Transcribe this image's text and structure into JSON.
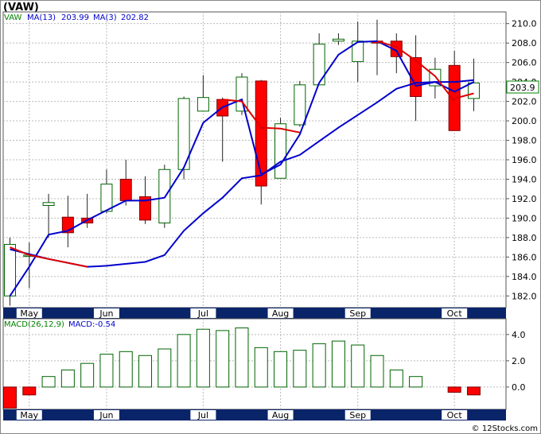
{
  "title": "(VAW)",
  "legend": {
    "symbol": "VAW",
    "ma13_label": "MA(13)",
    "ma13_value": "203.99",
    "ma3_label": "MA(3)",
    "ma3_value": "202.82"
  },
  "price_tag": "203.9",
  "macd_legend": {
    "label": "MACD(26,12,9)",
    "value_label": "MACD:-0.54"
  },
  "watermark": "© 12Stocks.com",
  "colors": {
    "up": "#ffffff",
    "up_border": "#006400",
    "down": "#ff0000",
    "down_border": "#800000",
    "ma13": "#0000cc",
    "ma3": "#dd0000",
    "grid": "#bbbbbb",
    "axis_band": "#0a246a",
    "tag_border": "#008000"
  },
  "chart_data": [
    {
      "type": "candlestick",
      "title": "(VAW)",
      "y_ticks": [
        182,
        184,
        186,
        188,
        190,
        192,
        194,
        196,
        198,
        200,
        202,
        204,
        206,
        208,
        210
      ],
      "ylim": [
        180.8,
        211.2
      ],
      "x_tick_labels": [
        {
          "index": 1,
          "label": "May"
        },
        {
          "index": 5,
          "label": "Jun"
        },
        {
          "index": 10,
          "label": "Jul"
        },
        {
          "index": 14,
          "label": "Aug"
        },
        {
          "index": 18,
          "label": "Sep"
        },
        {
          "index": 23,
          "label": "Oct"
        }
      ],
      "grid": true,
      "candles": [
        {
          "o": 182.0,
          "h": 188.0,
          "l": 181.0,
          "c": 187.3
        },
        {
          "o": 186.2,
          "h": 187.5,
          "l": 182.8,
          "c": 186.2
        },
        {
          "o": 191.3,
          "h": 192.5,
          "l": 188.0,
          "c": 191.6
        },
        {
          "o": 190.1,
          "h": 192.3,
          "l": 187.0,
          "c": 188.5
        },
        {
          "o": 190.0,
          "h": 192.5,
          "l": 189.0,
          "c": 189.5
        },
        {
          "o": 190.7,
          "h": 195.0,
          "l": 190.5,
          "c": 193.5
        },
        {
          "o": 194.0,
          "h": 196.0,
          "l": 191.3,
          "c": 191.8
        },
        {
          "o": 192.2,
          "h": 194.3,
          "l": 189.4,
          "c": 189.8
        },
        {
          "o": 189.5,
          "h": 195.5,
          "l": 189.0,
          "c": 195.0
        },
        {
          "o": 195.0,
          "h": 202.5,
          "l": 194.0,
          "c": 202.3
        },
        {
          "o": 201.0,
          "h": 204.7,
          "l": 201.0,
          "c": 202.4
        },
        {
          "o": 202.2,
          "h": 202.4,
          "l": 195.8,
          "c": 200.5
        },
        {
          "o": 201.0,
          "h": 204.9,
          "l": 200.6,
          "c": 204.5
        },
        {
          "o": 204.1,
          "h": 204.2,
          "l": 191.4,
          "c": 193.3
        },
        {
          "o": 194.1,
          "h": 200.3,
          "l": 194.1,
          "c": 199.7
        },
        {
          "o": 199.6,
          "h": 204.1,
          "l": 199.4,
          "c": 203.7
        },
        {
          "o": 203.7,
          "h": 209.0,
          "l": 203.7,
          "c": 207.9
        },
        {
          "o": 208.2,
          "h": 209.0,
          "l": 207.8,
          "c": 208.4
        },
        {
          "o": 206.1,
          "h": 210.2,
          "l": 204.0,
          "c": 208.2
        },
        {
          "o": 208.2,
          "h": 210.4,
          "l": 204.7,
          "c": 208.0
        },
        {
          "o": 208.2,
          "h": 209.0,
          "l": 204.9,
          "c": 206.6
        },
        {
          "o": 206.5,
          "h": 208.8,
          "l": 200.0,
          "c": 202.5
        },
        {
          "o": 203.6,
          "h": 206.5,
          "l": 202.3,
          "c": 205.3
        },
        {
          "o": 205.7,
          "h": 207.2,
          "l": 199.0,
          "c": 199.0
        },
        {
          "o": 202.3,
          "h": 206.4,
          "l": 201.0,
          "c": 203.9
        }
      ],
      "ma13": [
        {
          "i": 0,
          "v": 182.0
        },
        {
          "i": 1,
          "v": 185.0
        },
        {
          "i": 2,
          "v": 188.3
        },
        {
          "i": 3,
          "v": 188.7
        },
        {
          "i": 4,
          "v": 189.8
        },
        {
          "i": 5,
          "v": 190.8
        },
        {
          "i": 6,
          "v": 191.8
        },
        {
          "i": 7,
          "v": 191.8
        },
        {
          "i": 8,
          "v": 192.1
        },
        {
          "i": 9,
          "v": 195.2
        },
        {
          "i": 10,
          "v": 199.8
        },
        {
          "i": 11,
          "v": 201.4
        },
        {
          "i": 12,
          "v": 202.2
        },
        {
          "i": 13,
          "v": 194.5
        },
        {
          "i": 14,
          "v": 195.5
        },
        {
          "i": 15,
          "v": 198.6
        },
        {
          "i": 16,
          "v": 203.9
        },
        {
          "i": 17,
          "v": 206.8
        },
        {
          "i": 18,
          "v": 208.1
        },
        {
          "i": 19,
          "v": 208.2
        },
        {
          "i": 20,
          "v": 207.2
        },
        {
          "i": 21,
          "v": 203.6
        },
        {
          "i": 22,
          "v": 204.0
        },
        {
          "i": 23,
          "v": 203.0
        },
        {
          "i": 24,
          "v": 203.99
        }
      ],
      "ma3": [
        {
          "i": 0,
          "v": 186.8
        },
        {
          "i": 1,
          "v": 186.3
        },
        {
          "i": 2,
          "v": 185.8
        },
        {
          "i": 4,
          "v": 185.0
        },
        {
          "i": 5,
          "v": 185.1
        },
        {
          "i": 7,
          "v": 185.5
        },
        {
          "i": 8,
          "v": 186.2
        },
        {
          "i": 9,
          "v": 188.7
        },
        {
          "i": 10,
          "v": 190.5
        },
        {
          "i": 11,
          "v": 192.1
        },
        {
          "i": 12,
          "v": 194.1
        },
        {
          "i": 13,
          "v": 194.4
        },
        {
          "i": 14,
          "v": 195.8
        },
        {
          "i": 15,
          "v": 196.5
        },
        {
          "i": 16,
          "v": 197.9
        },
        {
          "i": 17,
          "v": 199.3
        },
        {
          "i": 18,
          "v": 200.6
        },
        {
          "i": 19,
          "v": 201.9
        },
        {
          "i": 20,
          "v": 203.3
        },
        {
          "i": 21,
          "v": 203.9
        },
        {
          "i": 22,
          "v": 204.0
        },
        {
          "i": 23,
          "v": 204.0
        },
        {
          "i": 24,
          "v": 204.2
        }
      ],
      "ma_red_segments": [
        [
          {
            "i": 0,
            "v": 187.0
          },
          {
            "i": 1,
            "v": 186.2
          },
          {
            "i": 2,
            "v": 185.8
          },
          {
            "i": 4,
            "v": 185.0
          }
        ],
        [
          {
            "i": 11,
            "v": 202.2
          },
          {
            "i": 12,
            "v": 202.0
          },
          {
            "i": 13,
            "v": 199.3
          },
          {
            "i": 14,
            "v": 199.2
          },
          {
            "i": 15,
            "v": 198.8
          }
        ],
        [
          {
            "i": 19,
            "v": 208.2
          },
          {
            "i": 20,
            "v": 207.6
          },
          {
            "i": 21,
            "v": 206.2
          },
          {
            "i": 22,
            "v": 204.6
          },
          {
            "i": 23,
            "v": 202.0
          }
        ],
        [
          {
            "i": 23,
            "v": 202.3
          },
          {
            "i": 24,
            "v": 202.82
          }
        ]
      ]
    },
    {
      "type": "bar",
      "title": "MACD(26,12,9)",
      "y_ticks": [
        0.0,
        2.0,
        4.0
      ],
      "y_tick_labels": [
        "0.0",
        "2.0",
        "4.0"
      ],
      "ylim": [
        -1.7,
        5.2
      ],
      "values": [
        -1.6,
        -0.6,
        0.8,
        1.3,
        1.8,
        2.5,
        2.7,
        2.4,
        2.9,
        4.0,
        4.4,
        4.3,
        4.5,
        3.0,
        2.7,
        2.8,
        3.3,
        3.5,
        3.2,
        2.4,
        1.3,
        0.8,
        null,
        -0.4,
        -0.6
      ],
      "last_value": -0.54
    }
  ]
}
